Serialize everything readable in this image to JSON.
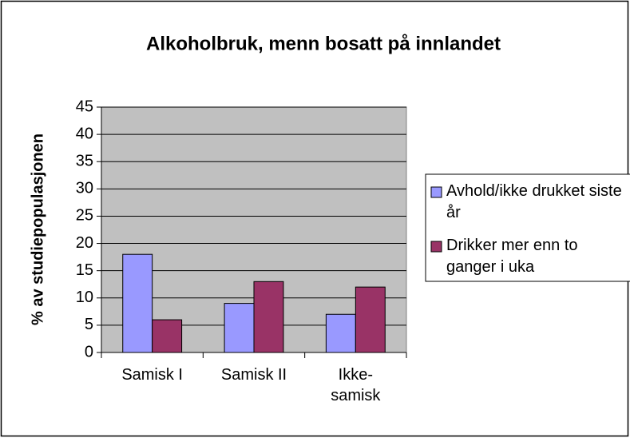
{
  "chart_data": {
    "type": "bar",
    "title": "Alkoholbruk, menn bosatt på innlandet",
    "y_label": "% av studiepopulasjonen",
    "categories": [
      "Samisk I",
      "Samisk II",
      "Ikke-samisk"
    ],
    "series": [
      {
        "name": "Avhold/ikke drukket siste år",
        "color": "#9999ff",
        "values": [
          18,
          9,
          7
        ]
      },
      {
        "name": "Drikker mer enn to ganger i uka",
        "color": "#993366",
        "values": [
          6,
          13,
          12
        ]
      }
    ],
    "ylim": [
      0,
      45
    ],
    "yticks": [
      0,
      5,
      10,
      15,
      20,
      25,
      30,
      35,
      40,
      45
    ],
    "grid": true,
    "plot_background": "#c0c0c0",
    "legend": "right"
  }
}
